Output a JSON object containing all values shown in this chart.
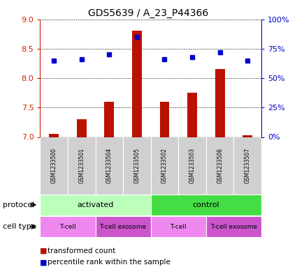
{
  "title": "GDS5639 / A_23_P44366",
  "samples": [
    "GSM1233500",
    "GSM1233501",
    "GSM1233504",
    "GSM1233505",
    "GSM1233502",
    "GSM1233503",
    "GSM1233506",
    "GSM1233507"
  ],
  "transformed_count": [
    7.05,
    7.3,
    7.6,
    8.8,
    7.6,
    7.75,
    8.15,
    7.03
  ],
  "percentile_rank": [
    65,
    66,
    70,
    85,
    66,
    68,
    72,
    65
  ],
  "ylim_left": [
    7.0,
    9.0
  ],
  "ylim_right": [
    0,
    100
  ],
  "yticks_left": [
    7.0,
    7.5,
    8.0,
    8.5,
    9.0
  ],
  "yticks_right": [
    0,
    25,
    50,
    75,
    100
  ],
  "bar_color": "#bb1100",
  "dot_color": "#0000cc",
  "protocol_groups": [
    {
      "label": "activated",
      "start": 0,
      "end": 4,
      "color": "#bbffbb"
    },
    {
      "label": "control",
      "start": 4,
      "end": 8,
      "color": "#44dd44"
    }
  ],
  "celltype_groups": [
    {
      "label": "T-cell",
      "start": 0,
      "end": 2,
      "color": "#ee88ee"
    },
    {
      "label": "T-cell exosome",
      "start": 2,
      "end": 4,
      "color": "#cc55cc"
    },
    {
      "label": "T-cell",
      "start": 4,
      "end": 6,
      "color": "#ee88ee"
    },
    {
      "label": "T-cell exosome",
      "start": 6,
      "end": 8,
      "color": "#cc55cc"
    }
  ],
  "legend_red": "transformed count",
  "legend_blue": "percentile rank within the sample",
  "protocol_label": "protocol",
  "celltype_label": "cell type"
}
